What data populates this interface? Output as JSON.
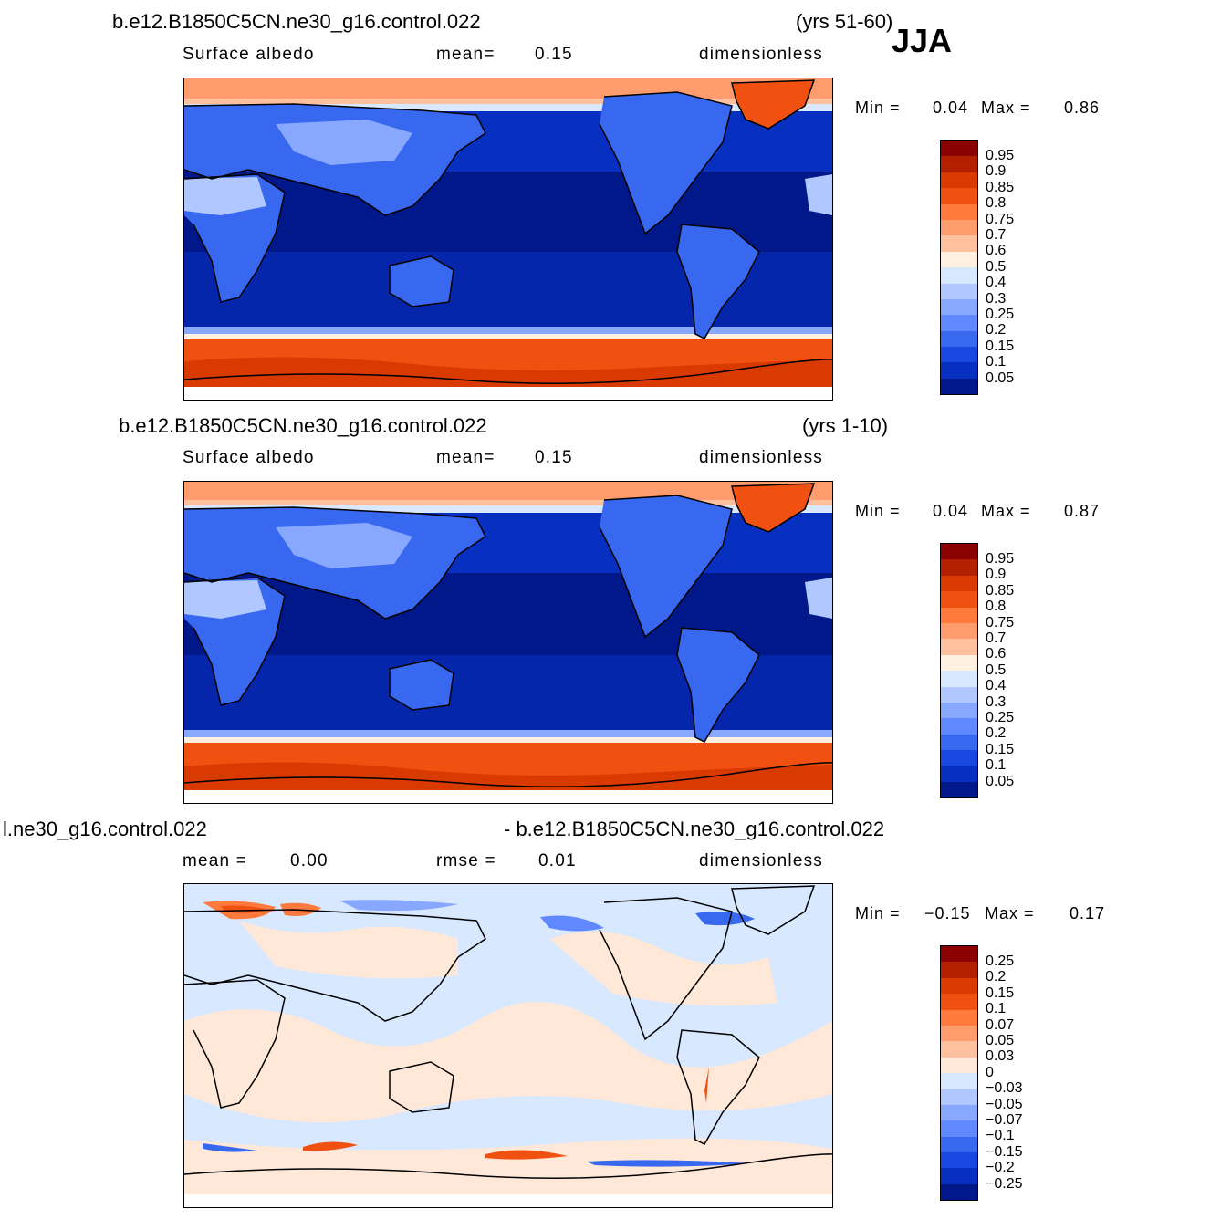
{
  "season": "JJA",
  "panels": [
    {
      "case": "b.e12.B1850C5CN.ne30_g16.control.022",
      "years": "(yrs 51-60)",
      "variable": "Surface  albedo",
      "stat1_label": "mean=",
      "stat1_value": "0.15",
      "units": "dimensionless",
      "min_label": "Min  =",
      "min_value": "0.04",
      "max_label": "Max  =",
      "max_value": "0.86",
      "colorbar_labels": [
        "0.95",
        "0.9",
        "0.85",
        "0.8",
        "0.75",
        "0.7",
        "0.6",
        "0.5",
        "0.4",
        "0.3",
        "0.25",
        "0.2",
        "0.15",
        "0.1",
        "0.05"
      ]
    },
    {
      "case": "b.e12.B1850C5CN.ne30_g16.control.022",
      "years": "(yrs 1-10)",
      "variable": "Surface  albedo",
      "stat1_label": "mean=",
      "stat1_value": "0.15",
      "units": "dimensionless",
      "min_label": "Min  =",
      "min_value": "0.04",
      "max_label": "Max  =",
      "max_value": "0.87",
      "colorbar_labels": [
        "0.95",
        "0.9",
        "0.85",
        "0.8",
        "0.75",
        "0.7",
        "0.6",
        "0.5",
        "0.4",
        "0.3",
        "0.25",
        "0.2",
        "0.15",
        "0.1",
        "0.05"
      ]
    },
    {
      "case_left": "l.ne30_g16.control.022",
      "case_right": "- b.e12.B1850C5CN.ne30_g16.control.022",
      "stat1_label": "mean  =",
      "stat1_value": "0.00",
      "stat2_label": "rmse  =",
      "stat2_value": "0.01",
      "units": "dimensionless",
      "min_label": "Min  =",
      "min_value": "−0.15",
      "max_label": "Max  =",
      "max_value": "0.17",
      "colorbar_labels": [
        "0.25",
        "0.2",
        "0.15",
        "0.1",
        "0.07",
        "0.05",
        "0.03",
        "0",
        "−0.03",
        "−0.05",
        "−0.07",
        "−0.1",
        "−0.15",
        "−0.2",
        "−0.25"
      ]
    }
  ],
  "colors": {
    "albedo_scale": [
      "#8b0000",
      "#b22000",
      "#d93a00",
      "#f05010",
      "#ff7a3c",
      "#ff9c6e",
      "#ffc0a0",
      "#fff0e0",
      "#d8e8ff",
      "#b0c8ff",
      "#88a8ff",
      "#6088ff",
      "#3868f0",
      "#1848e0",
      "#0830c0",
      "#00188a"
    ],
    "diff_scale": [
      "#8b0000",
      "#b22000",
      "#d93a00",
      "#f05010",
      "#ff7a3c",
      "#ff9c6e",
      "#ffc0a0",
      "#ffe8d8",
      "#d8e8ff",
      "#b0c8ff",
      "#88a8ff",
      "#6088ff",
      "#3868f0",
      "#1848e0",
      "#0830c0",
      "#00188a"
    ]
  }
}
